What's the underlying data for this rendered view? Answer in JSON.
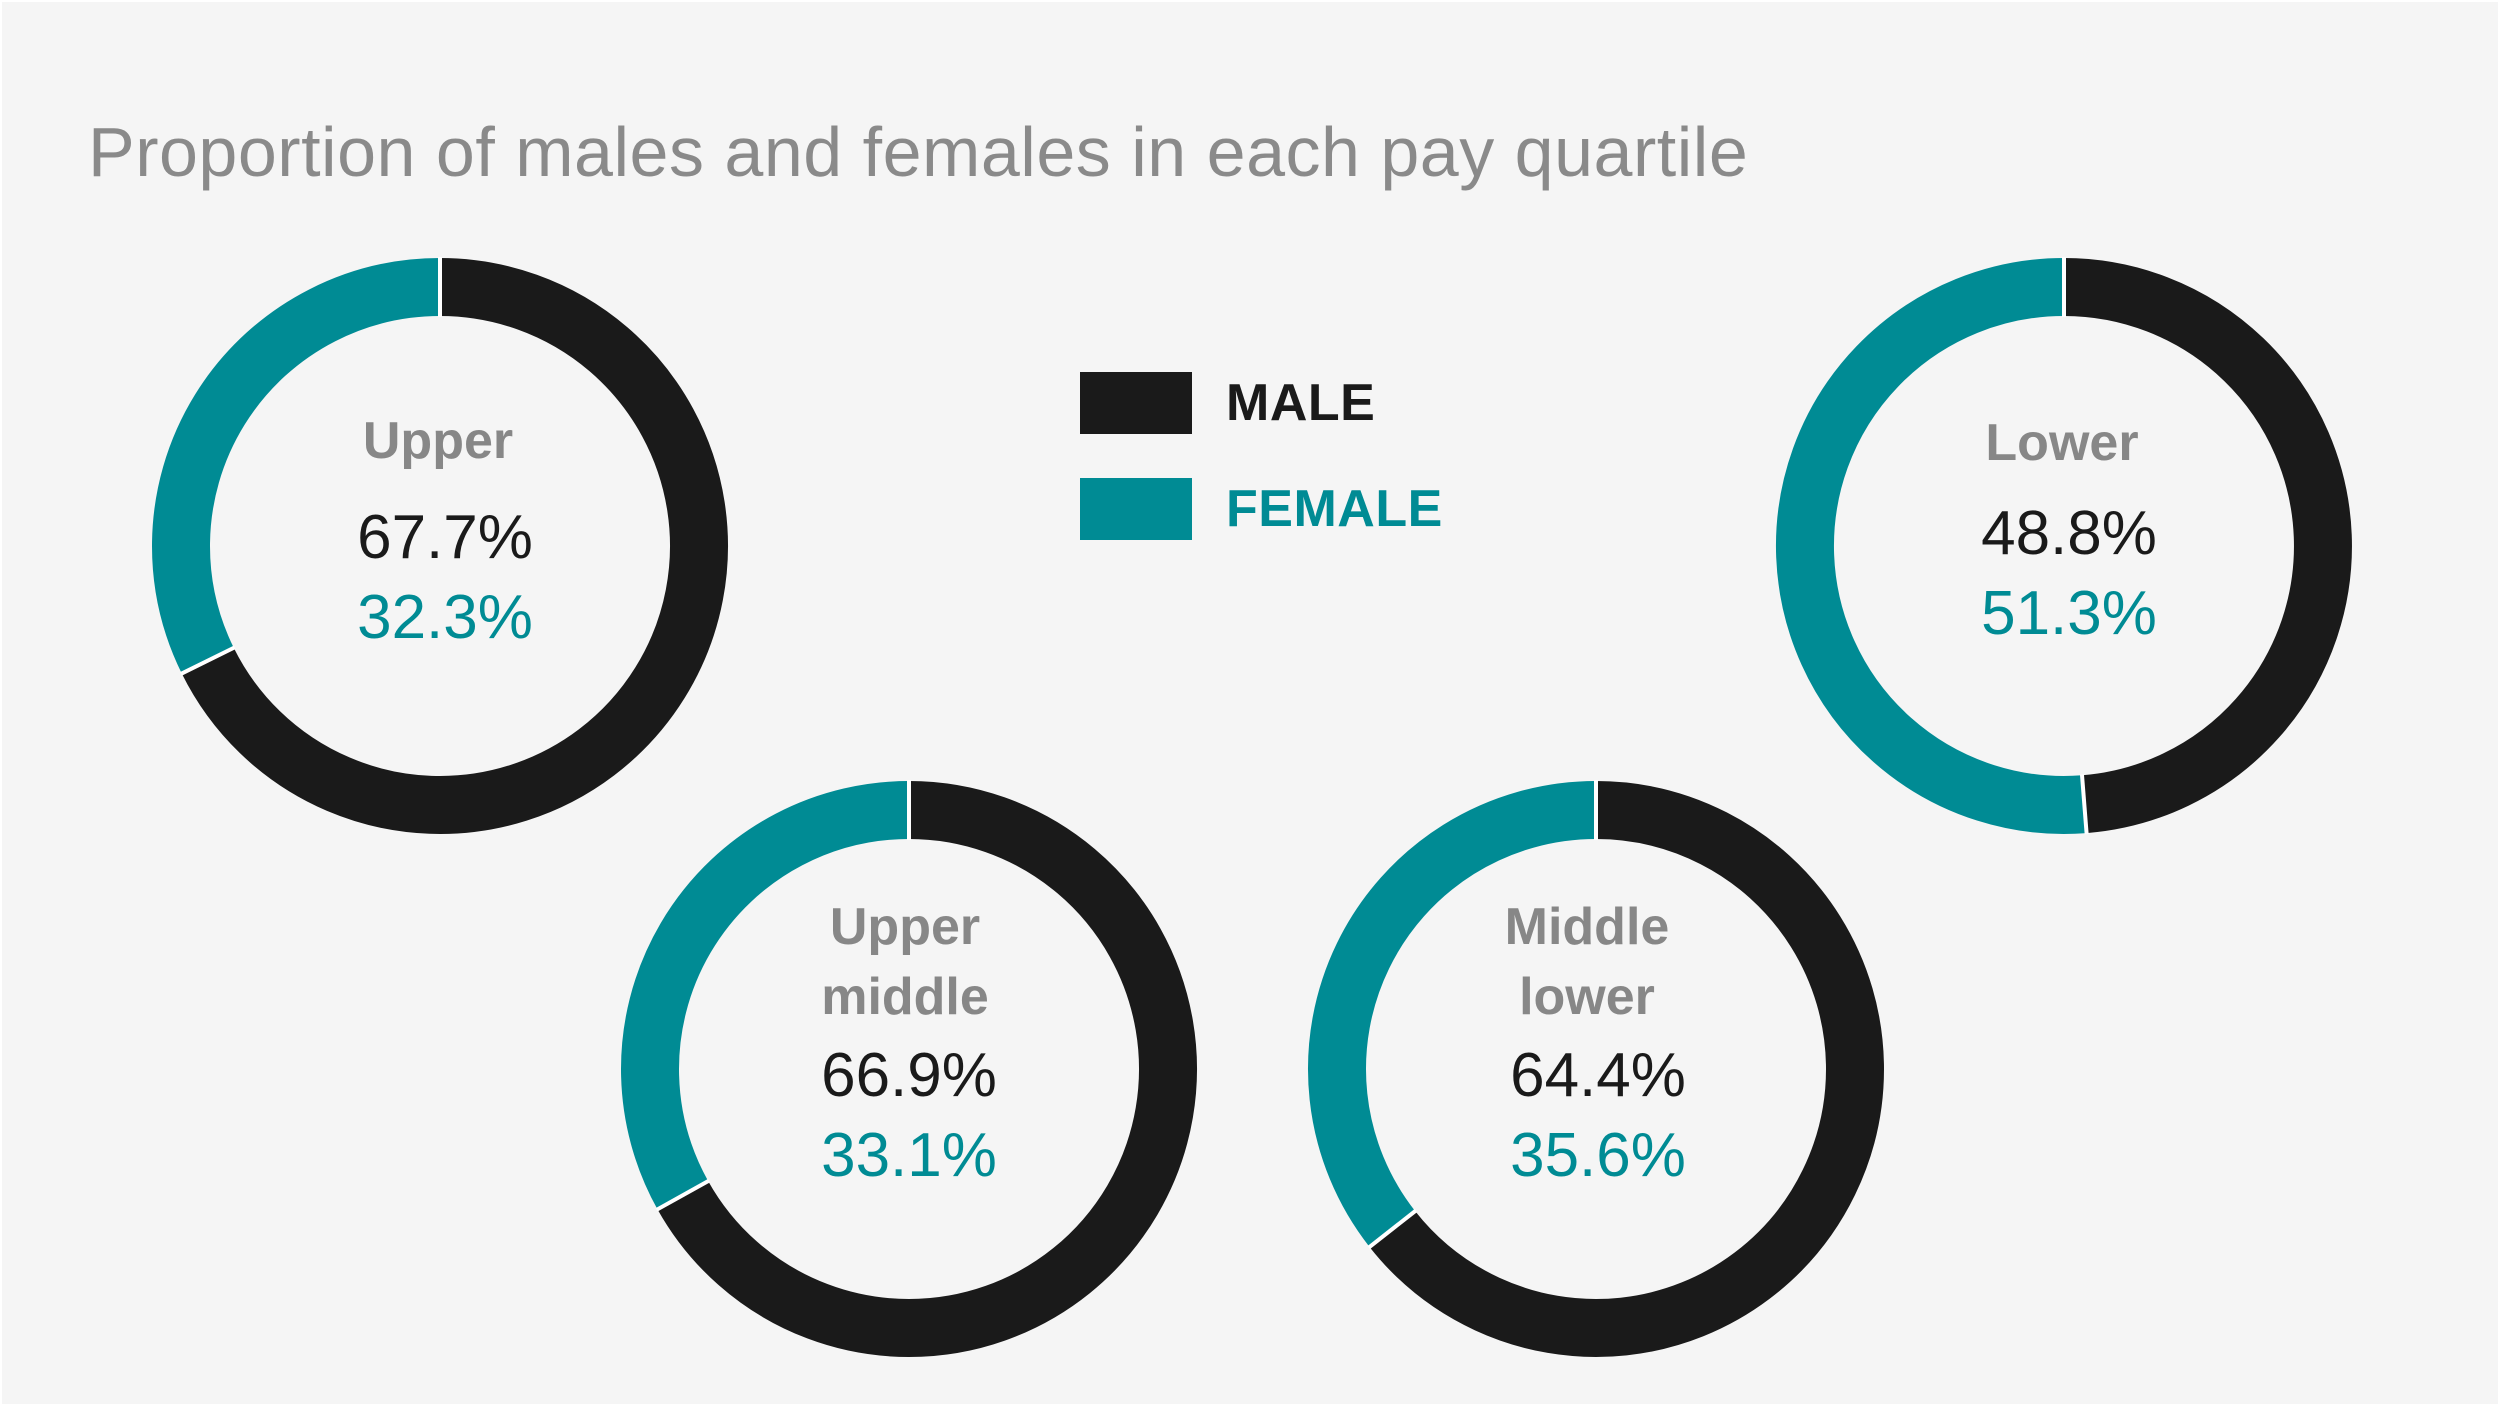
{
  "colors": {
    "male": "#1a1a1a",
    "female": "#008b94",
    "background": "#f5f5f5",
    "title": "#8a8a8a",
    "name": "#878787"
  },
  "chart_data": {
    "type": "donut",
    "title": "Proportion of males and females in each pay quartile",
    "legend": {
      "placement": "top-center",
      "entries": [
        {
          "name": "MALE",
          "color": "#1a1a1a"
        },
        {
          "name": "FEMALE",
          "color": "#008b94"
        }
      ]
    },
    "series_names": [
      "MALE",
      "FEMALE"
    ],
    "charts": [
      {
        "key": "upper",
        "name_lines": [
          "Upper"
        ],
        "male": 67.7,
        "female": 32.3,
        "male_label": "67.7%",
        "female_label": "32.3%"
      },
      {
        "key": "upper_middle",
        "name_lines": [
          "Upper",
          "middle"
        ],
        "male": 66.9,
        "female": 33.1,
        "male_label": "66.9%",
        "female_label": "33.1%"
      },
      {
        "key": "middle_lower",
        "name_lines": [
          "Middle",
          "lower"
        ],
        "male": 64.4,
        "female": 35.6,
        "male_label": "64.4%",
        "female_label": "35.6%"
      },
      {
        "key": "lower",
        "name_lines": [
          "Lower"
        ],
        "male": 48.8,
        "female": 51.3,
        "male_label": "48.8%",
        "female_label": "51.3%"
      }
    ]
  }
}
